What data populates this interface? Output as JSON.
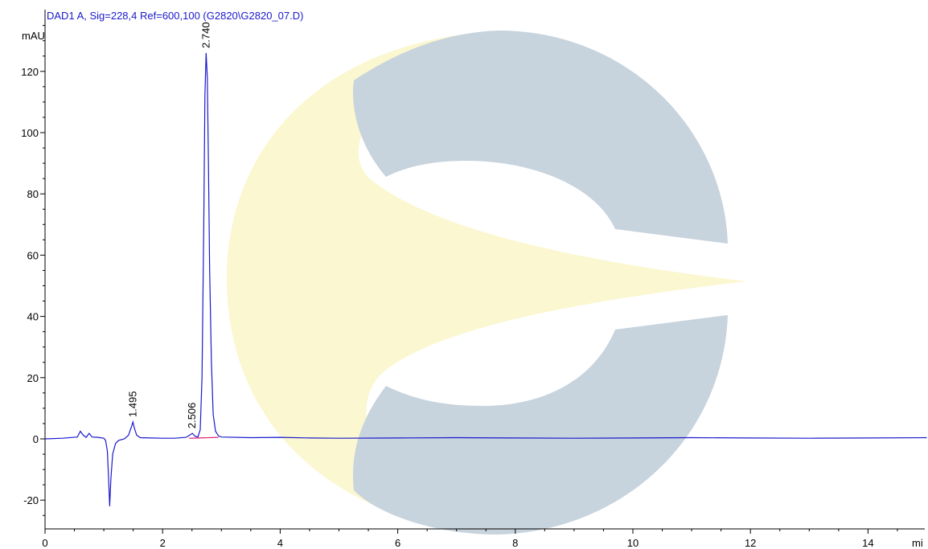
{
  "chart_data": {
    "type": "line",
    "title": "DAD1 A, Sig=228,4 Ref=600,100 (G2820\\G2820_07.D)",
    "ylabel": "mAU",
    "xlabel": "mi",
    "xlim": [
      0,
      15
    ],
    "ylim": [
      -29,
      137
    ],
    "x_ticks": [
      0,
      2,
      4,
      6,
      8,
      10,
      12,
      14
    ],
    "y_ticks": [
      -20,
      0,
      20,
      40,
      60,
      80,
      100,
      120
    ],
    "grid": false,
    "peaks": [
      {
        "label": "1.495",
        "x": 1.495,
        "y": 5.5
      },
      {
        "label": "2.506",
        "x": 2.506,
        "y": 1.8
      },
      {
        "label": "2.740",
        "x": 2.74,
        "y": 126
      }
    ],
    "series": [
      {
        "color": "#1a1acc",
        "points": [
          [
            0,
            0
          ],
          [
            0.3,
            0.2
          ],
          [
            0.55,
            0.6
          ],
          [
            0.6,
            2.5
          ],
          [
            0.65,
            1.2
          ],
          [
            0.7,
            0.5
          ],
          [
            0.75,
            1.8
          ],
          [
            0.8,
            0.6
          ],
          [
            0.9,
            0.5
          ],
          [
            1.0,
            0.2
          ],
          [
            1.03,
            -0.5
          ],
          [
            1.06,
            -4
          ],
          [
            1.08,
            -12
          ],
          [
            1.1,
            -22
          ],
          [
            1.12,
            -13
          ],
          [
            1.15,
            -5
          ],
          [
            1.2,
            -1.5
          ],
          [
            1.25,
            -0.5
          ],
          [
            1.35,
            0
          ],
          [
            1.42,
            1.2
          ],
          [
            1.47,
            4
          ],
          [
            1.495,
            5.5
          ],
          [
            1.52,
            3.5
          ],
          [
            1.56,
            1.2
          ],
          [
            1.62,
            0.4
          ],
          [
            1.8,
            0.3
          ],
          [
            2.0,
            0.2
          ],
          [
            2.2,
            0.2
          ],
          [
            2.4,
            0.5
          ],
          [
            2.46,
            1.2
          ],
          [
            2.506,
            1.8
          ],
          [
            2.55,
            0.9
          ],
          [
            2.6,
            0.6
          ],
          [
            2.64,
            3
          ],
          [
            2.67,
            20
          ],
          [
            2.7,
            70
          ],
          [
            2.72,
            112
          ],
          [
            2.74,
            126
          ],
          [
            2.76,
            118
          ],
          [
            2.78,
            90
          ],
          [
            2.8,
            55
          ],
          [
            2.83,
            25
          ],
          [
            2.86,
            8
          ],
          [
            2.9,
            2.5
          ],
          [
            2.95,
            1
          ],
          [
            3.0,
            0.6
          ],
          [
            3.5,
            0.4
          ],
          [
            4.0,
            0.5
          ],
          [
            4.5,
            0.3
          ],
          [
            5.0,
            0.2
          ],
          [
            6.0,
            0.3
          ],
          [
            7.0,
            0.4
          ],
          [
            8.0,
            0.3
          ],
          [
            9.0,
            0.2
          ],
          [
            10.0,
            0.3
          ],
          [
            11.0,
            0.4
          ],
          [
            12.0,
            0.3
          ],
          [
            13.0,
            0.2
          ],
          [
            14.0,
            0.3
          ],
          [
            15.0,
            0.4
          ]
        ]
      },
      {
        "color": "#e0207a",
        "points": [
          [
            2.45,
            0.2
          ],
          [
            2.55,
            0.25
          ],
          [
            2.62,
            0.3
          ],
          [
            2.95,
            0.5
          ]
        ]
      }
    ]
  },
  "watermark": {
    "colors": {
      "gray": "#c7d3dd",
      "yellow": "#fbf7d0"
    }
  }
}
